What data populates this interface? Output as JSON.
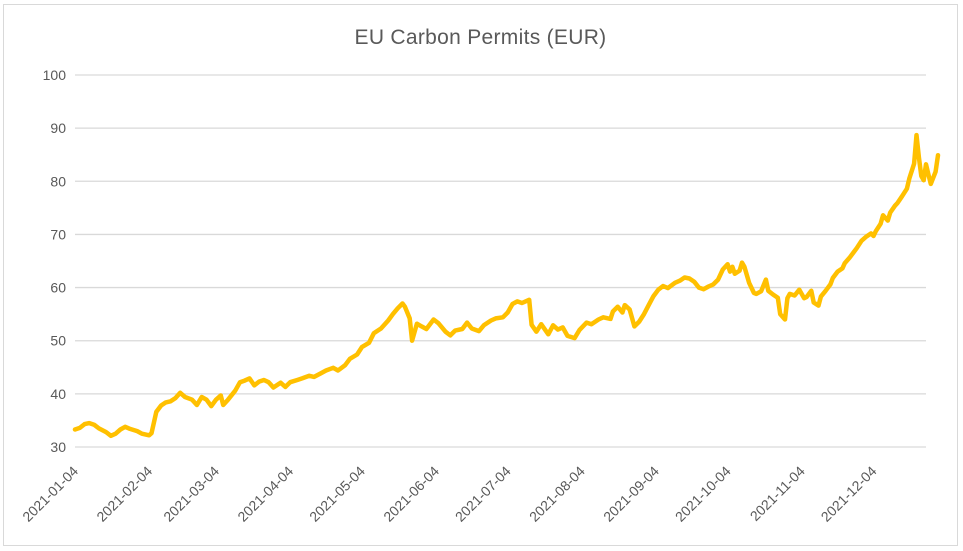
{
  "window": {
    "background": "#FFFFFF",
    "frame_border_color": "#D9D9D9"
  },
  "chart_data": {
    "type": "line",
    "title": "EU Carbon Permits (EUR)",
    "xlabel": "",
    "ylabel": "",
    "ylim": [
      30,
      100
    ],
    "yticks": [
      30,
      40,
      50,
      60,
      70,
      80,
      90,
      100
    ],
    "x_tick_labels": [
      "2021-01-04",
      "2021-02-04",
      "2021-03-04",
      "2021-04-04",
      "2021-05-04",
      "2021-06-04",
      "2021-07-04",
      "2021-08-04",
      "2021-09-04",
      "2021-10-04",
      "2021-11-04",
      "2021-12-04"
    ],
    "x_range": [
      "2021-01-04",
      "2021-12-31"
    ],
    "grid": "horizontal",
    "legend": "none",
    "title_color": "#595959",
    "axis_label_color": "#595959",
    "gridline_color": "#D9D9D9",
    "series": [
      {
        "name": "EU Carbon Permits (EUR)",
        "color": "#FFC000",
        "points": [
          [
            "2021-01-04",
            33.3
          ],
          [
            "2021-01-06",
            33.6
          ],
          [
            "2021-01-08",
            34.3
          ],
          [
            "2021-01-10",
            34.5
          ],
          [
            "2021-01-12",
            34.2
          ],
          [
            "2021-01-14",
            33.5
          ],
          [
            "2021-01-17",
            32.8
          ],
          [
            "2021-01-19",
            32.1
          ],
          [
            "2021-01-21",
            32.5
          ],
          [
            "2021-01-23",
            33.3
          ],
          [
            "2021-01-25",
            33.8
          ],
          [
            "2021-01-27",
            33.4
          ],
          [
            "2021-01-30",
            33.0
          ],
          [
            "2021-02-01",
            32.5
          ],
          [
            "2021-02-04",
            32.2
          ],
          [
            "2021-02-05",
            32.6
          ],
          [
            "2021-02-06",
            34.6
          ],
          [
            "2021-02-07",
            36.6
          ],
          [
            "2021-02-09",
            37.8
          ],
          [
            "2021-02-11",
            38.4
          ],
          [
            "2021-02-13",
            38.6
          ],
          [
            "2021-02-15",
            39.2
          ],
          [
            "2021-02-17",
            40.2
          ],
          [
            "2021-02-19",
            39.4
          ],
          [
            "2021-02-22",
            38.9
          ],
          [
            "2021-02-24",
            37.9
          ],
          [
            "2021-02-26",
            39.4
          ],
          [
            "2021-02-28",
            38.9
          ],
          [
            "2021-03-02",
            37.7
          ],
          [
            "2021-03-04",
            38.9
          ],
          [
            "2021-03-06",
            39.7
          ],
          [
            "2021-03-07",
            37.9
          ],
          [
            "2021-03-09",
            38.9
          ],
          [
            "2021-03-12",
            40.6
          ],
          [
            "2021-03-14",
            42.2
          ],
          [
            "2021-03-16",
            42.5
          ],
          [
            "2021-03-18",
            42.9
          ],
          [
            "2021-03-20",
            41.6
          ],
          [
            "2021-03-22",
            42.3
          ],
          [
            "2021-03-24",
            42.6
          ],
          [
            "2021-03-26",
            42.2
          ],
          [
            "2021-03-28",
            41.2
          ],
          [
            "2021-03-31",
            42.1
          ],
          [
            "2021-04-02",
            41.3
          ],
          [
            "2021-04-04",
            42.2
          ],
          [
            "2021-04-07",
            42.6
          ],
          [
            "2021-04-09",
            42.9
          ],
          [
            "2021-04-12",
            43.4
          ],
          [
            "2021-04-14",
            43.2
          ],
          [
            "2021-04-17",
            43.9
          ],
          [
            "2021-04-19",
            44.4
          ],
          [
            "2021-04-22",
            44.9
          ],
          [
            "2021-04-24",
            44.4
          ],
          [
            "2021-04-27",
            45.4
          ],
          [
            "2021-04-29",
            46.6
          ],
          [
            "2021-05-02",
            47.4
          ],
          [
            "2021-05-04",
            48.8
          ],
          [
            "2021-05-07",
            49.6
          ],
          [
            "2021-05-09",
            51.4
          ],
          [
            "2021-05-12",
            52.3
          ],
          [
            "2021-05-15",
            53.8
          ],
          [
            "2021-05-17",
            55.0
          ],
          [
            "2021-05-19",
            56.1
          ],
          [
            "2021-05-21",
            57.0
          ],
          [
            "2021-05-22",
            56.4
          ],
          [
            "2021-05-24",
            54.2
          ],
          [
            "2021-05-25",
            50.0
          ],
          [
            "2021-05-27",
            53.2
          ],
          [
            "2021-05-29",
            52.7
          ],
          [
            "2021-05-31",
            52.2
          ],
          [
            "2021-06-03",
            54.0
          ],
          [
            "2021-06-05",
            53.3
          ],
          [
            "2021-06-08",
            51.7
          ],
          [
            "2021-06-10",
            51.0
          ],
          [
            "2021-06-12",
            51.9
          ],
          [
            "2021-06-15",
            52.2
          ],
          [
            "2021-06-17",
            53.4
          ],
          [
            "2021-06-19",
            52.3
          ],
          [
            "2021-06-22",
            51.8
          ],
          [
            "2021-06-24",
            52.9
          ],
          [
            "2021-06-27",
            53.8
          ],
          [
            "2021-06-29",
            54.2
          ],
          [
            "2021-07-02",
            54.4
          ],
          [
            "2021-07-04",
            55.3
          ],
          [
            "2021-07-06",
            56.9
          ],
          [
            "2021-07-08",
            57.4
          ],
          [
            "2021-07-10",
            57.1
          ],
          [
            "2021-07-13",
            57.7
          ],
          [
            "2021-07-14",
            53.0
          ],
          [
            "2021-07-16",
            51.7
          ],
          [
            "2021-07-18",
            53.1
          ],
          [
            "2021-07-21",
            51.2
          ],
          [
            "2021-07-23",
            52.9
          ],
          [
            "2021-07-25",
            52.1
          ],
          [
            "2021-07-27",
            52.5
          ],
          [
            "2021-07-29",
            50.9
          ],
          [
            "2021-08-01",
            50.5
          ],
          [
            "2021-08-03",
            52.0
          ],
          [
            "2021-08-06",
            53.4
          ],
          [
            "2021-08-08",
            53.1
          ],
          [
            "2021-08-11",
            54.0
          ],
          [
            "2021-08-13",
            54.4
          ],
          [
            "2021-08-16",
            54.1
          ],
          [
            "2021-08-17",
            55.5
          ],
          [
            "2021-08-19",
            56.4
          ],
          [
            "2021-08-21",
            55.3
          ],
          [
            "2021-08-22",
            56.7
          ],
          [
            "2021-08-24",
            55.9
          ],
          [
            "2021-08-26",
            52.7
          ],
          [
            "2021-08-28",
            53.6
          ],
          [
            "2021-08-30",
            55.0
          ],
          [
            "2021-09-01",
            56.7
          ],
          [
            "2021-09-03",
            58.4
          ],
          [
            "2021-09-05",
            59.6
          ],
          [
            "2021-09-07",
            60.3
          ],
          [
            "2021-09-09",
            59.9
          ],
          [
            "2021-09-12",
            60.9
          ],
          [
            "2021-09-14",
            61.3
          ],
          [
            "2021-09-16",
            61.9
          ],
          [
            "2021-09-18",
            61.7
          ],
          [
            "2021-09-20",
            61.1
          ],
          [
            "2021-09-22",
            60.0
          ],
          [
            "2021-09-24",
            59.7
          ],
          [
            "2021-09-26",
            60.2
          ],
          [
            "2021-09-28",
            60.6
          ],
          [
            "2021-09-30",
            61.5
          ],
          [
            "2021-10-02",
            63.4
          ],
          [
            "2021-10-04",
            64.4
          ],
          [
            "2021-10-05",
            63.0
          ],
          [
            "2021-10-06",
            63.9
          ],
          [
            "2021-10-07",
            62.6
          ],
          [
            "2021-10-09",
            63.2
          ],
          [
            "2021-10-10",
            64.7
          ],
          [
            "2021-10-11",
            63.9
          ],
          [
            "2021-10-13",
            60.9
          ],
          [
            "2021-10-15",
            59.0
          ],
          [
            "2021-10-16",
            58.8
          ],
          [
            "2021-10-18",
            59.3
          ],
          [
            "2021-10-20",
            61.5
          ],
          [
            "2021-10-21",
            59.4
          ],
          [
            "2021-10-23",
            58.7
          ],
          [
            "2021-10-25",
            58.1
          ],
          [
            "2021-10-26",
            55.0
          ],
          [
            "2021-10-28",
            54.0
          ],
          [
            "2021-10-29",
            58.0
          ],
          [
            "2021-10-30",
            58.8
          ],
          [
            "2021-11-01",
            58.5
          ],
          [
            "2021-11-03",
            59.6
          ],
          [
            "2021-11-05",
            58.0
          ],
          [
            "2021-11-06",
            58.2
          ],
          [
            "2021-11-08",
            59.4
          ],
          [
            "2021-11-09",
            57.2
          ],
          [
            "2021-11-11",
            56.6
          ],
          [
            "2021-11-12",
            58.3
          ],
          [
            "2021-11-14",
            59.4
          ],
          [
            "2021-11-16",
            60.6
          ],
          [
            "2021-11-17",
            61.8
          ],
          [
            "2021-11-19",
            63.0
          ],
          [
            "2021-11-21",
            63.6
          ],
          [
            "2021-11-22",
            64.6
          ],
          [
            "2021-11-24",
            65.6
          ],
          [
            "2021-11-26",
            66.8
          ],
          [
            "2021-11-27",
            67.4
          ],
          [
            "2021-11-29",
            68.8
          ],
          [
            "2021-12-01",
            69.6
          ],
          [
            "2021-12-03",
            70.2
          ],
          [
            "2021-12-04",
            69.7
          ],
          [
            "2021-12-05",
            70.6
          ],
          [
            "2021-12-07",
            72.0
          ],
          [
            "2021-12-08",
            73.6
          ],
          [
            "2021-12-10",
            72.6
          ],
          [
            "2021-12-11",
            74.1
          ],
          [
            "2021-12-13",
            75.4
          ],
          [
            "2021-12-14",
            75.9
          ],
          [
            "2021-12-16",
            77.2
          ],
          [
            "2021-12-18",
            78.6
          ],
          [
            "2021-12-19",
            80.5
          ],
          [
            "2021-12-21",
            83.3
          ],
          [
            "2021-12-22",
            88.7
          ],
          [
            "2021-12-23",
            84.5
          ],
          [
            "2021-12-24",
            81.0
          ],
          [
            "2021-12-25",
            80.2
          ],
          [
            "2021-12-26",
            83.2
          ],
          [
            "2021-12-27",
            81.3
          ],
          [
            "2021-12-28",
            79.5
          ],
          [
            "2021-12-30",
            81.8
          ],
          [
            "2021-12-31",
            84.9
          ]
        ]
      }
    ]
  }
}
